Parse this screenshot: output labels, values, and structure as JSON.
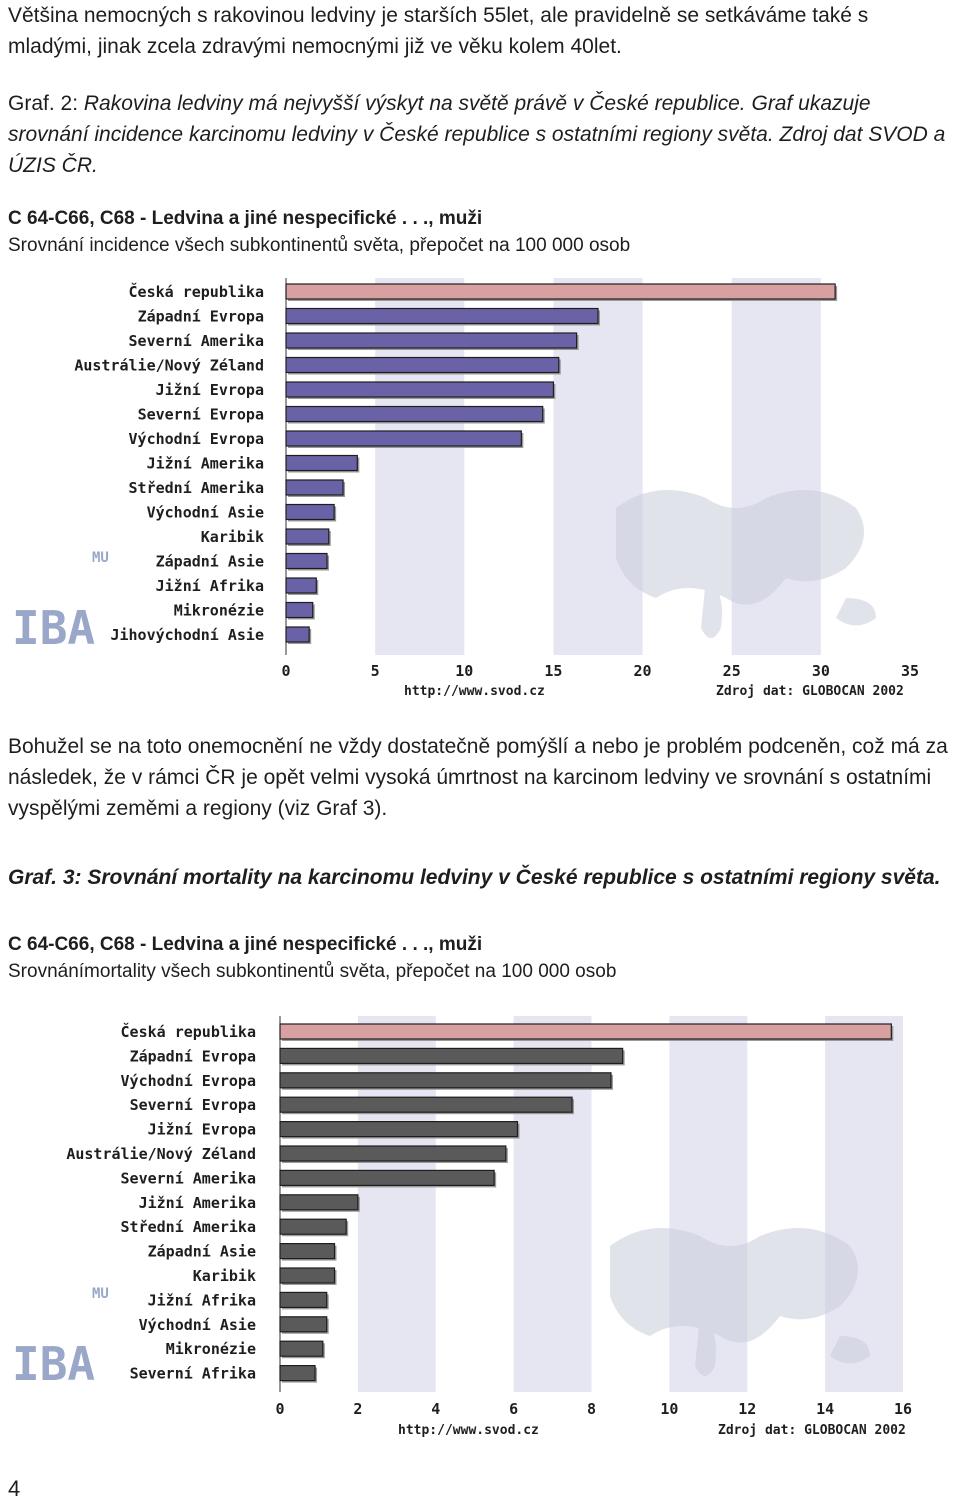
{
  "intro_paragraph": "Většina nemocných s rakovinou ledviny je starších 55let, ale pravidelně se setkáváme také s mladými, jinak zcela zdravými nemocnými již ve věku kolem 40let.",
  "figure2": {
    "caption_lead": "Graf. 2: ",
    "caption_text": "Rakovina ledviny má nejvyšší výskyt na světě právě v České republice. Graf ukazuje srovnání incidence karcinomu ledviny v České republice s ostatními regiony světa. Zdroj dat SVOD a ÚZIS ČR.",
    "heading": "C 64-C66, C68 - Ledvina a jiné nespecifické . . ., muži",
    "subheading": "Srovnání incidence všech subkontinentů světa, přepočet na 100 000 osob"
  },
  "middle_paragraph": "Bohužel se na toto onemocnění ne vždy dostatečně pomýšlí a nebo je problém podceněn, což má za následek, že v rámci ČR je opět velmi vysoká úmrtnost na karcinom ledviny ve srovnání s ostatními vyspělými zeměmi a regiony (viz Graf 3).",
  "figure3": {
    "caption": "Graf. 3: Srovnání mortality na karcinomu ledviny v České republice s ostatními regiony světa.",
    "heading": "C 64-C66, C68 - Ledvina a jiné nespecifické . . ., muži",
    "subheading": "Srovnánímortality všech subkontinentů světa, přepočet na 100 000 osob"
  },
  "page_number": "4",
  "colors": {
    "highlight_bar": "#d8a0a0",
    "incidence_bar": "#6a62a6",
    "mortality_bar": "#5a5a5a",
    "band": "#e6e6f3",
    "watermark": "#9aa7c9"
  },
  "chart_data": [
    {
      "type": "bar",
      "orientation": "horizontal",
      "categories": [
        "Česká republika",
        "Západní Evropa",
        "Severní Amerika",
        "Austrálie/Nový Zéland",
        "Jižní Evropa",
        "Severní Evropa",
        "Východní Evropa",
        "Jižní Amerika",
        "Střední Amerika",
        "Východní Asie",
        "Karibik",
        "Západní Asie",
        "Jižní Afrika",
        "Mikronézie",
        "Jihovýchodní Asie"
      ],
      "values": [
        30.8,
        17.5,
        16.3,
        15.3,
        15.0,
        14.4,
        13.2,
        4.0,
        3.2,
        2.7,
        2.4,
        2.3,
        1.7,
        1.5,
        1.3
      ],
      "highlight": "Česká republika",
      "xlim": [
        0,
        35
      ],
      "xticks": [
        0,
        5,
        10,
        15,
        20,
        25,
        30,
        35
      ],
      "source_left": "http://www.svod.cz",
      "source_right": "Zdroj dat: GLOBOCAN 2002",
      "watermark": [
        "MU",
        "IBA"
      ]
    },
    {
      "type": "bar",
      "orientation": "horizontal",
      "categories": [
        "Česká republika",
        "Západní Evropa",
        "Východní Evropa",
        "Severní Evropa",
        "Jižní Evropa",
        "Austrálie/Nový Zéland",
        "Severní Amerika",
        "Jižní Amerika",
        "Střední Amerika",
        "Západní Asie",
        "Karibik",
        "Jižní Afrika",
        "Východní Asie",
        "Mikronézie",
        "Severní Afrika"
      ],
      "values": [
        15.7,
        8.8,
        8.5,
        7.5,
        6.1,
        5.8,
        5.5,
        2.0,
        1.7,
        1.4,
        1.4,
        1.2,
        1.2,
        1.1,
        0.9
      ],
      "highlight": "Česká republika",
      "xlim": [
        0,
        16
      ],
      "xticks": [
        0,
        2,
        4,
        6,
        8,
        10,
        12,
        14,
        16
      ],
      "source_left": "http://www.svod.cz",
      "source_right": "Zdroj dat: GLOBOCAN 2002",
      "watermark": [
        "MU",
        "IBA"
      ]
    }
  ]
}
